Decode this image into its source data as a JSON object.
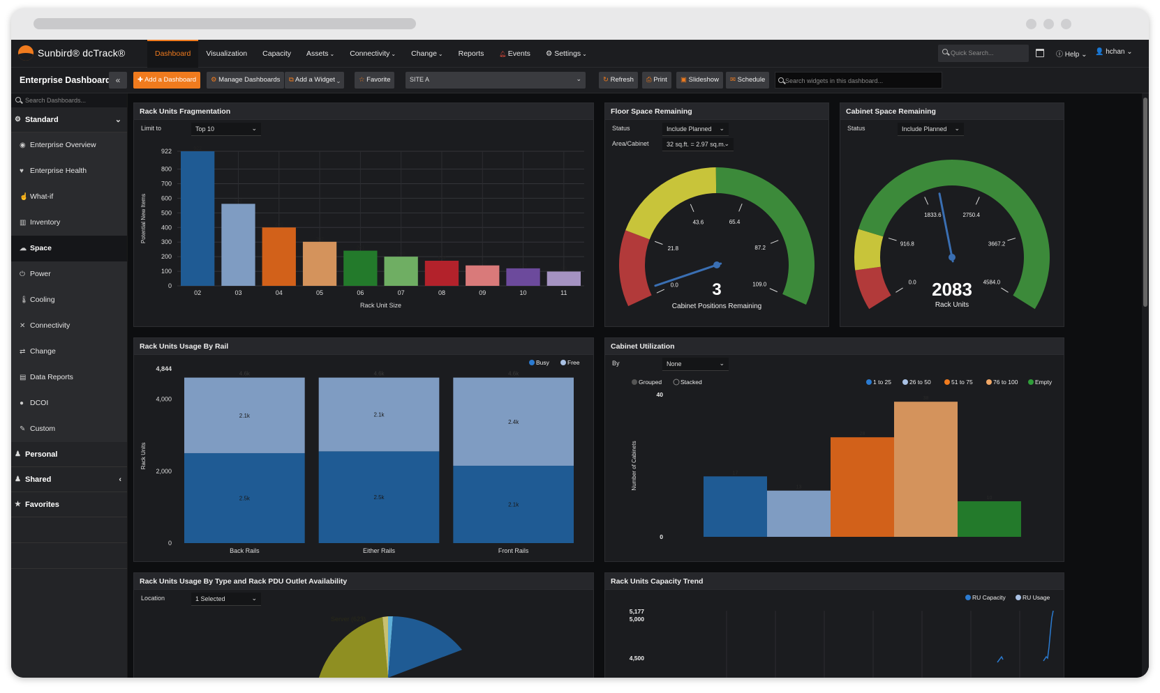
{
  "app": {
    "brand": "Sunbird® dcTrack®"
  },
  "nav": {
    "items": [
      {
        "label": "Dashboard",
        "caret": ""
      },
      {
        "label": "Visualization",
        "caret": ""
      },
      {
        "label": "Capacity",
        "caret": ""
      },
      {
        "label": "Assets",
        "caret": "⌄"
      },
      {
        "label": "Connectivity",
        "caret": "⌄"
      },
      {
        "label": "Change",
        "caret": "⌄"
      },
      {
        "label": "Reports",
        "caret": ""
      },
      {
        "label": "Events",
        "caret": ""
      },
      {
        "label": "Settings",
        "caret": "⌄"
      }
    ],
    "quick_search_placeholder": "Quick Search...",
    "help": "Help",
    "user": "hchan"
  },
  "toolbar": {
    "title": "Enterprise Dashboard",
    "collapse": "«",
    "add_dashboard": "Add a Dashboard",
    "manage_dashboards": "Manage Dashboards",
    "add_widget": "Add a Widget",
    "favorite": "Favorite",
    "site": "SITE A",
    "refresh": "Refresh",
    "print": "Print",
    "slideshow": "Slideshow",
    "schedule": "Schedule",
    "widget_search_placeholder": "Search widgets in this dashboard..."
  },
  "sidebar": {
    "search_placeholder": "Search Dashboards...",
    "standard": "Standard",
    "items": [
      "Enterprise Overview",
      "Enterprise Health",
      "What-if",
      "Inventory",
      "Space",
      "Power",
      "Cooling",
      "Connectivity",
      "Change",
      "Data Reports",
      "DCOI",
      "Custom"
    ],
    "personal": "Personal",
    "shared": "Shared",
    "favorites": "Favorites"
  },
  "widgets": {
    "frag": {
      "title": "Rack Units Fragmentation",
      "limit_label": "Limit to",
      "limit_value": "Top 10"
    },
    "floor": {
      "title": "Floor Space Remaining",
      "status_label": "Status",
      "status_value": "Include Planned",
      "area_label": "Area/Cabinet",
      "area_value": "32 sq.ft. = 2.97 sq.m.",
      "value": "3",
      "caption": "Cabinet Positions Remaining"
    },
    "cabinet_space": {
      "title": "Cabinet Space Remaining",
      "status_label": "Status",
      "status_value": "Include Planned",
      "value": "2083",
      "caption": "Rack Units"
    },
    "rail": {
      "title": "Rack Units Usage By Rail"
    },
    "util": {
      "title": "Cabinet Utilization",
      "by_label": "By",
      "by_value": "None",
      "grouped": "Grouped",
      "stacked": "Stacked"
    },
    "pdu": {
      "title": "Rack Units Usage By Type and Rack PDU Outlet Availability",
      "location_label": "Location",
      "location_value": "1 Selected",
      "slice_label": "Server (623)"
    },
    "trend": {
      "title": "Rack Units Capacity Trend"
    }
  },
  "colors": {
    "accent": "#f07b1e",
    "busy": "#1f5b94",
    "free": "#7f9cc2"
  },
  "chart_data": [
    {
      "type": "bar",
      "title": "Rack Units Fragmentation",
      "xlabel": "Rack Unit Size",
      "ylabel": "Potential New Items",
      "categories": [
        "02",
        "03",
        "04",
        "05",
        "06",
        "07",
        "08",
        "09",
        "10",
        "11"
      ],
      "values": [
        922,
        562,
        400,
        302,
        241,
        200,
        172,
        140,
        120,
        98
      ],
      "value_labels": [
        "922",
        "562",
        "400",
        "302",
        "241",
        "200",
        "172",
        "140",
        "120",
        "98"
      ],
      "colors": [
        "#1f5b94",
        "#7f9cc2",
        "#d2611a",
        "#d4935c",
        "#237a2b",
        "#6fae63",
        "#b3222b",
        "#d97a7a",
        "#6c4a9c",
        "#a593c2"
      ],
      "yticks": [
        0,
        100,
        200,
        300,
        400,
        500,
        600,
        700,
        800,
        922
      ],
      "ylim": [
        0,
        922
      ]
    },
    {
      "type": "gauge",
      "title": "Floor Space Remaining",
      "min": 0,
      "max": 109,
      "value": 3,
      "ticks": [
        "0.0",
        "21.8",
        "43.6",
        "65.4",
        "87.2",
        "109.0"
      ],
      "bands": [
        {
          "from": 0,
          "to": 21.8,
          "color": "#b23a3a"
        },
        {
          "from": 21.8,
          "to": 54.5,
          "color": "#c8c43a"
        },
        {
          "from": 54.5,
          "to": 109,
          "color": "#3c8a3a"
        }
      ]
    },
    {
      "type": "gauge",
      "title": "Cabinet Space Remaining",
      "min": 0,
      "max": 4584,
      "value": 2083,
      "ticks": [
        "0.0",
        "916.8",
        "1833.6",
        "2750.4",
        "3667.2",
        "4584.0"
      ],
      "bands": [
        {
          "from": 0,
          "to": 458,
          "color": "#b23a3a"
        },
        {
          "from": 458,
          "to": 917,
          "color": "#c8c43a"
        },
        {
          "from": 917,
          "to": 4584,
          "color": "#3c8a3a"
        }
      ]
    },
    {
      "type": "bar",
      "stacked": true,
      "title": "Rack Units Usage By Rail",
      "ylabel": "Rack Units",
      "categories": [
        "Back Rails",
        "Either Rails",
        "Front Rails"
      ],
      "totals": [
        "4.6k",
        "4.6k",
        "4.6k"
      ],
      "series": [
        {
          "name": "Busy",
          "values": [
            2500,
            2550,
            2150
          ],
          "labels": [
            "2.5k",
            "2.5k",
            "2.1k"
          ]
        },
        {
          "name": "Free",
          "values": [
            2100,
            2050,
            2450
          ],
          "labels": [
            "2.1k",
            "2.1k",
            "2.4k"
          ]
        }
      ],
      "yticks": [
        "0",
        "2,000",
        "4,000",
        "4,844"
      ],
      "ylim": [
        0,
        4844
      ]
    },
    {
      "type": "bar",
      "title": "Cabinet Utilization",
      "ylabel": "Number of Cabinets",
      "series_names": [
        "1 to 25",
        "26 to 50",
        "51 to 75",
        "76 to 100",
        "Empty"
      ],
      "values": [
        17,
        13,
        28,
        38,
        10
      ],
      "value_labels": [
        "17",
        "13",
        "28",
        "38",
        "10"
      ],
      "colors": [
        "#1f5b94",
        "#7f9cc2",
        "#d2611a",
        "#d4935c",
        "#237a2b"
      ],
      "legend_dot_colors": [
        "#2b7bd1",
        "#a9c1e4",
        "#f07b1e",
        "#f0a766",
        "#2f9d39"
      ],
      "yticks": [
        "0",
        "40"
      ],
      "ylim": [
        0,
        40
      ]
    },
    {
      "type": "line",
      "title": "Rack Units Capacity Trend",
      "series_names": [
        "RU Capacity",
        "RU Usage"
      ],
      "yticks": [
        "4,500",
        "5,000",
        "5,177"
      ]
    }
  ]
}
